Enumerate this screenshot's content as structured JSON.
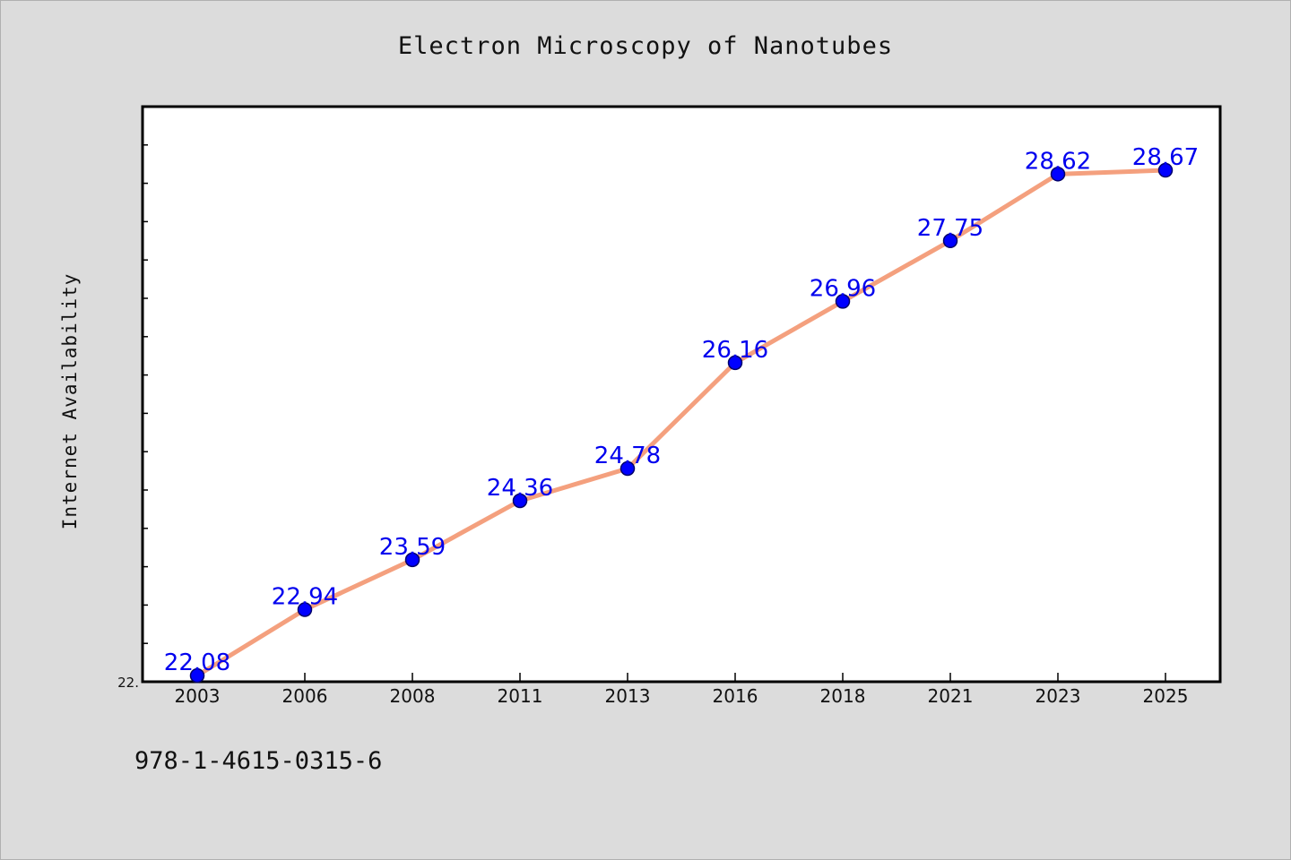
{
  "chart_data": {
    "type": "line",
    "title": "Electron Microscopy of Nanotubes",
    "xlabel": "",
    "ylabel": "Internet Availability",
    "categories": [
      "2003",
      "2006",
      "2008",
      "2011",
      "2013",
      "2016",
      "2018",
      "2021",
      "2023",
      "2025"
    ],
    "series": [
      {
        "values": [
          22.08,
          22.94,
          23.59,
          24.36,
          24.78,
          26.16,
          26.96,
          27.75,
          28.62,
          28.67
        ]
      }
    ],
    "data_labels": [
      "22.08",
      "22.94",
      "23.59",
      "24.36",
      "24.78",
      "26.16",
      "26.96",
      "27.75",
      "28.62",
      "28.67"
    ],
    "ylim": [
      22.0,
      29.5
    ],
    "y_tick_label": "22.",
    "grid": false,
    "colors": {
      "line": "#f4a07e",
      "marker": "#0000ff",
      "label": "#0000ee",
      "background": "#dcdcdc",
      "plot": "#ffffff"
    }
  },
  "footer": {
    "code": "978-1-4615-0315-6"
  }
}
